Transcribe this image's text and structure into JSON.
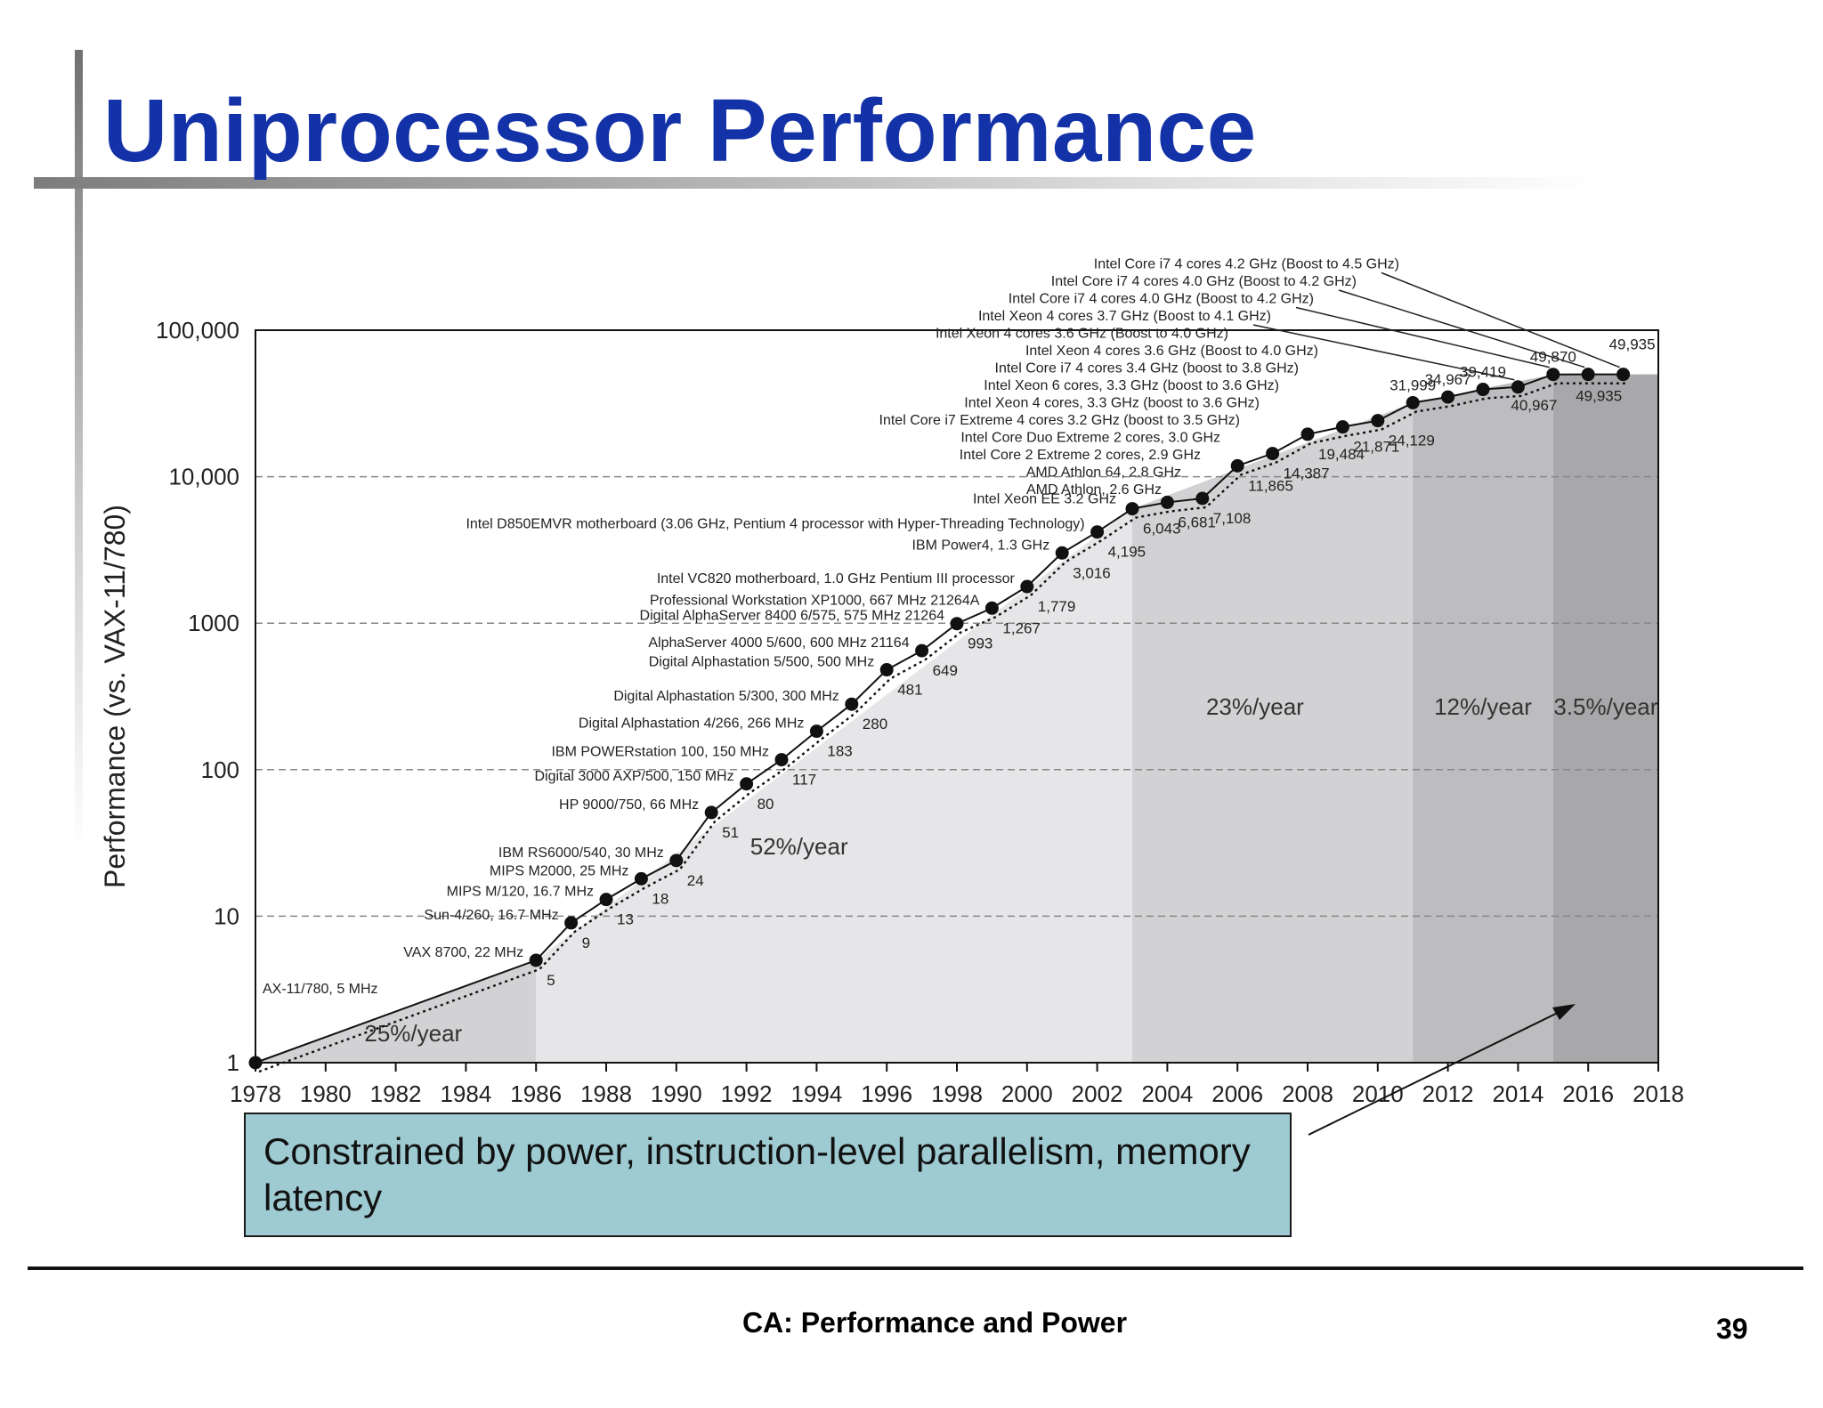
{
  "slide": {
    "title": "Uniprocessor Performance",
    "callout": "Constrained by power, instruction-level parallelism, memory latency",
    "footer": "CA: Performance and Power",
    "page_number": "39"
  },
  "chart_data": {
    "type": "line",
    "title": "",
    "xlabel": "",
    "ylabel": "Performance (vs. VAX-11/780)",
    "yscale": "log",
    "xlim": [
      1978,
      2018
    ],
    "ylim": [
      1,
      100000
    ],
    "xticks": [
      "1978",
      "1980",
      "1982",
      "1984",
      "1986",
      "1988",
      "1990",
      "1992",
      "1994",
      "1996",
      "1998",
      "2000",
      "2002",
      "2004",
      "2006",
      "2008",
      "2010",
      "2012",
      "2014",
      "2016",
      "2018"
    ],
    "yticks": [
      {
        "value": 1,
        "label": "1"
      },
      {
        "value": 10,
        "label": "10"
      },
      {
        "value": 100,
        "label": "100"
      },
      {
        "value": 1000,
        "label": "1000"
      },
      {
        "value": 10000,
        "label": "10,000"
      },
      {
        "value": 100000,
        "label": "100,000"
      }
    ],
    "grid": "horizontal dashed",
    "colors": {
      "dot": "#111111",
      "line": "#111111",
      "shade_1": "#d2d2d4",
      "shade_2": "#e6e6e8",
      "shade_3": "#d2d2d4",
      "shade_4": "#bdbdc0",
      "shade_5": "#a8a8ab"
    },
    "growth_regions": [
      {
        "from": 1978,
        "to": 1986,
        "rate": "25%/year",
        "shade": "shade_1"
      },
      {
        "from": 1986,
        "to": 2003,
        "rate": "52%/year",
        "shade": "shade_2"
      },
      {
        "from": 2003,
        "to": 2011,
        "rate": "23%/year",
        "shade": "shade_3"
      },
      {
        "from": 2011,
        "to": 2015,
        "rate": "12%/year",
        "shade": "shade_4"
      },
      {
        "from": 2015,
        "to": 2018,
        "rate": "3.5%/year",
        "shade": "shade_5"
      }
    ],
    "points": [
      {
        "x": 1978,
        "y": 1,
        "label": "AX-11/780, 5 MHz",
        "value_label": ""
      },
      {
        "x": 1986,
        "y": 5,
        "label": "VAX 8700, 22 MHz",
        "value_label": "5"
      },
      {
        "x": 1987,
        "y": 9,
        "label": "Sun-4/260, 16.7 MHz",
        "value_label": "9"
      },
      {
        "x": 1988,
        "y": 13,
        "label": "MIPS M/120, 16.7 MHz",
        "value_label": "13"
      },
      {
        "x": 1989,
        "y": 18,
        "label": "MIPS M2000, 25 MHz",
        "value_label": "18"
      },
      {
        "x": 1990,
        "y": 24,
        "label": "IBM RS6000/540, 30 MHz",
        "value_label": "24"
      },
      {
        "x": 1991,
        "y": 51,
        "label": "HP 9000/750, 66 MHz",
        "value_label": "51"
      },
      {
        "x": 1992,
        "y": 80,
        "label": "Digital 3000 AXP/500, 150 MHz",
        "value_label": "80"
      },
      {
        "x": 1993,
        "y": 117,
        "label": "IBM POWERstation 100, 150 MHz",
        "value_label": "117"
      },
      {
        "x": 1994,
        "y": 183,
        "label": "Digital Alphastation 4/266, 266 MHz",
        "value_label": "183"
      },
      {
        "x": 1995,
        "y": 280,
        "label": "Digital Alphastation 5/300, 300 MHz",
        "value_label": "280"
      },
      {
        "x": 1996,
        "y": 481,
        "label": "Digital Alphastation 5/500, 500 MHz",
        "value_label": "481"
      },
      {
        "x": 1997,
        "y": 649,
        "label": "AlphaServer 4000 5/600, 600 MHz 21164",
        "value_label": "649"
      },
      {
        "x": 1998,
        "y": 993,
        "label": "Digital AlphaServer 8400 6/575, 575 MHz 21264",
        "value_label": "993"
      },
      {
        "x": 1999,
        "y": 1267,
        "label": "Professional Workstation XP1000, 667 MHz 21264A",
        "value_label": "1,267"
      },
      {
        "x": 2000,
        "y": 1779,
        "label": "Intel VC820 motherboard, 1.0 GHz Pentium III processor",
        "value_label": "1,779"
      },
      {
        "x": 2001,
        "y": 3016,
        "label": "IBM Power4, 1.3 GHz",
        "value_label": "3,016"
      },
      {
        "x": 2002,
        "y": 4195,
        "label": "Intel D850EMVR motherboard (3.06 GHz, Pentium 4 processor with Hyper-Threading Technology)",
        "value_label": "4,195"
      },
      {
        "x": 2003,
        "y": 6043,
        "label": "Intel Xeon EE 3.2 GHz",
        "value_label": "6,043"
      },
      {
        "x": 2004,
        "y": 6681,
        "label": "AMD Athlon, 2.6 GHz",
        "value_label": "6,681"
      },
      {
        "x": 2005,
        "y": 7108,
        "label": "AMD Athlon 64, 2.8 GHz",
        "value_label": "7,108"
      },
      {
        "x": 2006,
        "y": 11865,
        "label": "Intel Core 2 Extreme 2 cores, 2.9 GHz",
        "value_label": "11,865"
      },
      {
        "x": 2007,
        "y": 14387,
        "label": "Intel Core Duo Extreme 2 cores, 3.0 GHz",
        "value_label": "14,387"
      },
      {
        "x": 2008,
        "y": 19484,
        "label": "Intel Core i7 Extreme 4 cores 3.2 GHz (boost to 3.5 GHz)",
        "value_label": "19,484"
      },
      {
        "x": 2009,
        "y": 21871,
        "label": "Intel Xeon 4 cores, 3.3 GHz (boost to 3.6 GHz)",
        "value_label": "21,871"
      },
      {
        "x": 2010,
        "y": 24129,
        "label": "Intel Xeon 6 cores, 3.3 GHz (boost to 3.6 GHz)",
        "value_label": "24,129"
      },
      {
        "x": 2011,
        "y": 31999,
        "label": "Intel Core i7 4 cores 3.4 GHz (boost to 3.8 GHz)",
        "value_label": "31,999"
      },
      {
        "x": 2012,
        "y": 34967,
        "label": "Intel Xeon 4 cores 3.6 GHz (Boost to 4.0 GHz)",
        "value_label": "34,967"
      },
      {
        "x": 2013,
        "y": 39419,
        "label": "Intel Xeon 4 cores 3.6 GHz (Boost to 4.0 GHz)",
        "value_label": "39,419"
      },
      {
        "x": 2014,
        "y": 40967,
        "label": "Intel Xeon 4 cores 3.7 GHz (Boost to 4.1 GHz)",
        "value_label": "40,967"
      },
      {
        "x": 2015,
        "y": 49870,
        "label": "Intel Core i7 4 cores 4.0 GHz (Boost to 4.2 GHz)",
        "value_label": "49,870"
      },
      {
        "x": 2016,
        "y": 49935,
        "label": "Intel Core i7 4 cores 4.0 GHz (Boost to 4.2 GHz)",
        "value_label": "49,935"
      },
      {
        "x": 2017,
        "y": 49935,
        "label": "Intel Core i7 4 cores 4.2 GHz (Boost to 4.5 GHz)",
        "value_label": "49,935"
      }
    ]
  }
}
